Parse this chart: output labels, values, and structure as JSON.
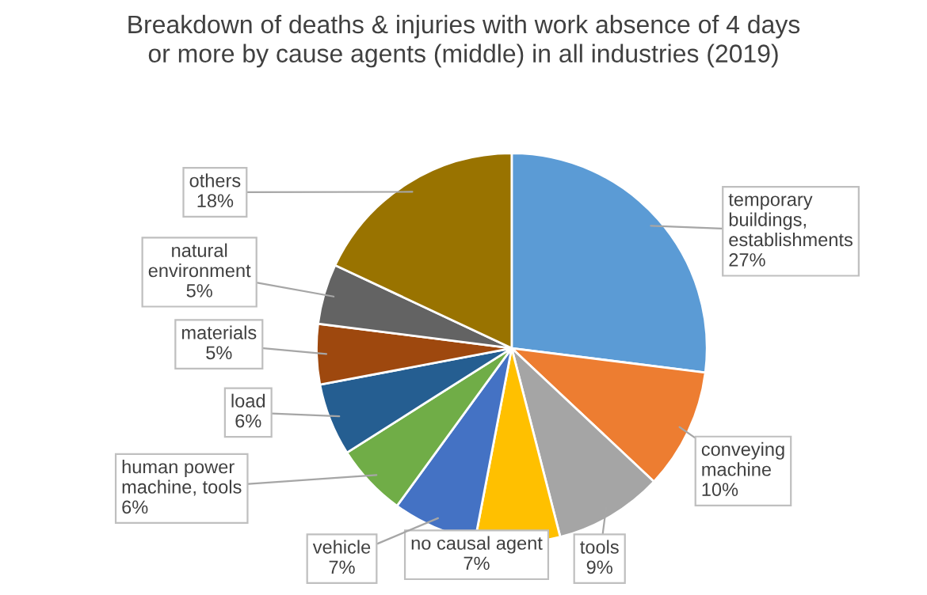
{
  "chart_data": {
    "type": "pie",
    "title": "Breakdown of deaths & injuries with work absence of 4 days\nor more by cause agents (middle) in all industries (2019)",
    "categories": [
      "temporary\nbuildings,\nestablishments",
      "conveying\nmachine",
      "tools",
      "no causal agent",
      "vehicle",
      "human power\nmachine, tools",
      "load",
      "materials",
      "natural\nenvironment",
      "others"
    ],
    "values": [
      27,
      10,
      9,
      7,
      7,
      6,
      6,
      5,
      5,
      18
    ],
    "value_labels": [
      "27%",
      "10%",
      "9%",
      "7%",
      "7%",
      "6%",
      "6%",
      "5%",
      "5%",
      "18%"
    ],
    "colors": [
      "#5b9bd5",
      "#ed7d31",
      "#a5a5a5",
      "#ffc000",
      "#4472c4",
      "#70ad47",
      "#255e91",
      "#9e480e",
      "#636363",
      "#997300"
    ],
    "legend": false
  }
}
